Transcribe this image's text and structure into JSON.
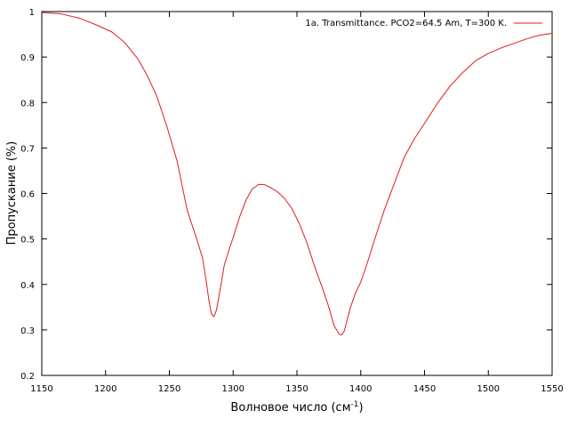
{
  "chart_data": {
    "type": "line",
    "xlabel": "Волновое число (см",
    "xlabel_sup": "-1",
    "xlabel_close": ")",
    "ylabel": "Пропускание (%)",
    "xlim": [
      1150,
      1550
    ],
    "ylim": [
      0.2,
      1.0
    ],
    "x_ticks": [
      1150,
      1200,
      1250,
      1300,
      1350,
      1400,
      1450,
      1500,
      1550
    ],
    "y_ticks": [
      0.2,
      0.3,
      0.4,
      0.5,
      0.6,
      0.7,
      0.8,
      0.9,
      1.0
    ],
    "y_tick_labels": [
      "0.2",
      "0.3",
      "0.4",
      "0.5",
      "0.6",
      "0.7",
      "0.8",
      "0.9",
      "1"
    ],
    "grid": false,
    "legend_position": "top-right",
    "series": [
      {
        "name": "1a. Transmittance. PCO2=64.5 Am, T=300 K.",
        "color": "#e41a1c",
        "x": [
          1150,
          1165,
          1180,
          1195,
          1205,
          1215,
          1225,
          1232,
          1240,
          1248,
          1256,
          1264,
          1272,
          1276,
          1279,
          1281,
          1283,
          1285,
          1287,
          1290,
          1293,
          1297,
          1301,
          1305,
          1310,
          1315,
          1320,
          1325,
          1330,
          1335,
          1340,
          1346,
          1352,
          1358,
          1364,
          1370,
          1375,
          1379,
          1383,
          1385,
          1387,
          1389,
          1392,
          1396,
          1400,
          1405,
          1410,
          1418,
          1426,
          1434,
          1442,
          1450,
          1460,
          1470,
          1480,
          1490,
          1500,
          1510,
          1520,
          1530,
          1540,
          1550
        ],
        "y": [
          0.998,
          0.995,
          0.985,
          0.968,
          0.955,
          0.932,
          0.897,
          0.863,
          0.815,
          0.748,
          0.672,
          0.563,
          0.495,
          0.458,
          0.405,
          0.365,
          0.335,
          0.329,
          0.345,
          0.392,
          0.442,
          0.478,
          0.512,
          0.548,
          0.585,
          0.61,
          0.62,
          0.619,
          0.612,
          0.603,
          0.59,
          0.567,
          0.533,
          0.49,
          0.438,
          0.392,
          0.35,
          0.31,
          0.291,
          0.289,
          0.297,
          0.318,
          0.35,
          0.382,
          0.405,
          0.446,
          0.491,
          0.56,
          0.62,
          0.679,
          0.72,
          0.754,
          0.798,
          0.836,
          0.866,
          0.892,
          0.908,
          0.92,
          0.93,
          0.94,
          0.948,
          0.952
        ]
      }
    ]
  }
}
